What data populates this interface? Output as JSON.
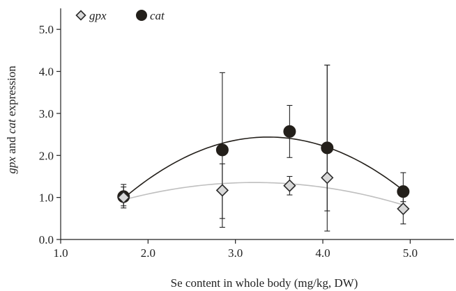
{
  "chart_data": {
    "type": "scatter",
    "title": "",
    "xlabel": "Se content in whole body (mg/kg, DW)",
    "ylabel_parts": [
      {
        "text": "gpx",
        "italic": true
      },
      {
        "text": " and ",
        "italic": false
      },
      {
        "text": "cat",
        "italic": true
      },
      {
        "text": " expression",
        "italic": false
      }
    ],
    "xlim": [
      1.0,
      5.5
    ],
    "ylim": [
      0.0,
      5.5
    ],
    "x_ticks": [
      1.0,
      2.0,
      3.0,
      4.0,
      5.0
    ],
    "x_tick_labels": [
      "1.0",
      "2.0",
      "3.0",
      "4.0",
      "5.0"
    ],
    "y_ticks": [
      0.0,
      1.0,
      2.0,
      3.0,
      4.0,
      5.0
    ],
    "y_tick_labels": [
      "0.0",
      "1.0",
      "2.0",
      "3.0",
      "4.0",
      "5.0"
    ],
    "grid": false,
    "legend_position": "top-left",
    "series": [
      {
        "name": "gpx",
        "marker": "diamond",
        "color": "#d9d9d9",
        "edge_color": "#2b2b2b",
        "trend_color": "#bfbfbf",
        "points": [
          {
            "x": 1.72,
            "y": 1.0,
            "err_low": 0.75,
            "err_high": 1.25
          },
          {
            "x": 2.85,
            "y": 1.17,
            "err_low": 0.29,
            "err_high": 1.8
          },
          {
            "x": 3.62,
            "y": 1.28,
            "err_low": 1.06,
            "err_high": 1.5
          },
          {
            "x": 4.05,
            "y": 1.47,
            "err_low": 0.68,
            "err_high": 4.15
          },
          {
            "x": 4.92,
            "y": 0.73,
            "err_low": 0.37,
            "err_high": 1.1
          }
        ]
      },
      {
        "name": "cat",
        "marker": "circle",
        "color": "#231f1a",
        "edge_color": "#231f1a",
        "trend_color": "#231f1a",
        "points": [
          {
            "x": 1.72,
            "y": 1.02,
            "err_low": 0.8,
            "err_high": 1.31
          },
          {
            "x": 2.85,
            "y": 2.13,
            "err_low": 0.5,
            "err_high": 3.97
          },
          {
            "x": 3.62,
            "y": 2.57,
            "err_low": 1.95,
            "err_high": 3.19
          },
          {
            "x": 4.05,
            "y": 2.18,
            "err_low": 0.2,
            "err_high": 4.15
          },
          {
            "x": 4.92,
            "y": 1.14,
            "err_low": 0.9,
            "err_high": 1.59
          }
        ]
      }
    ]
  }
}
